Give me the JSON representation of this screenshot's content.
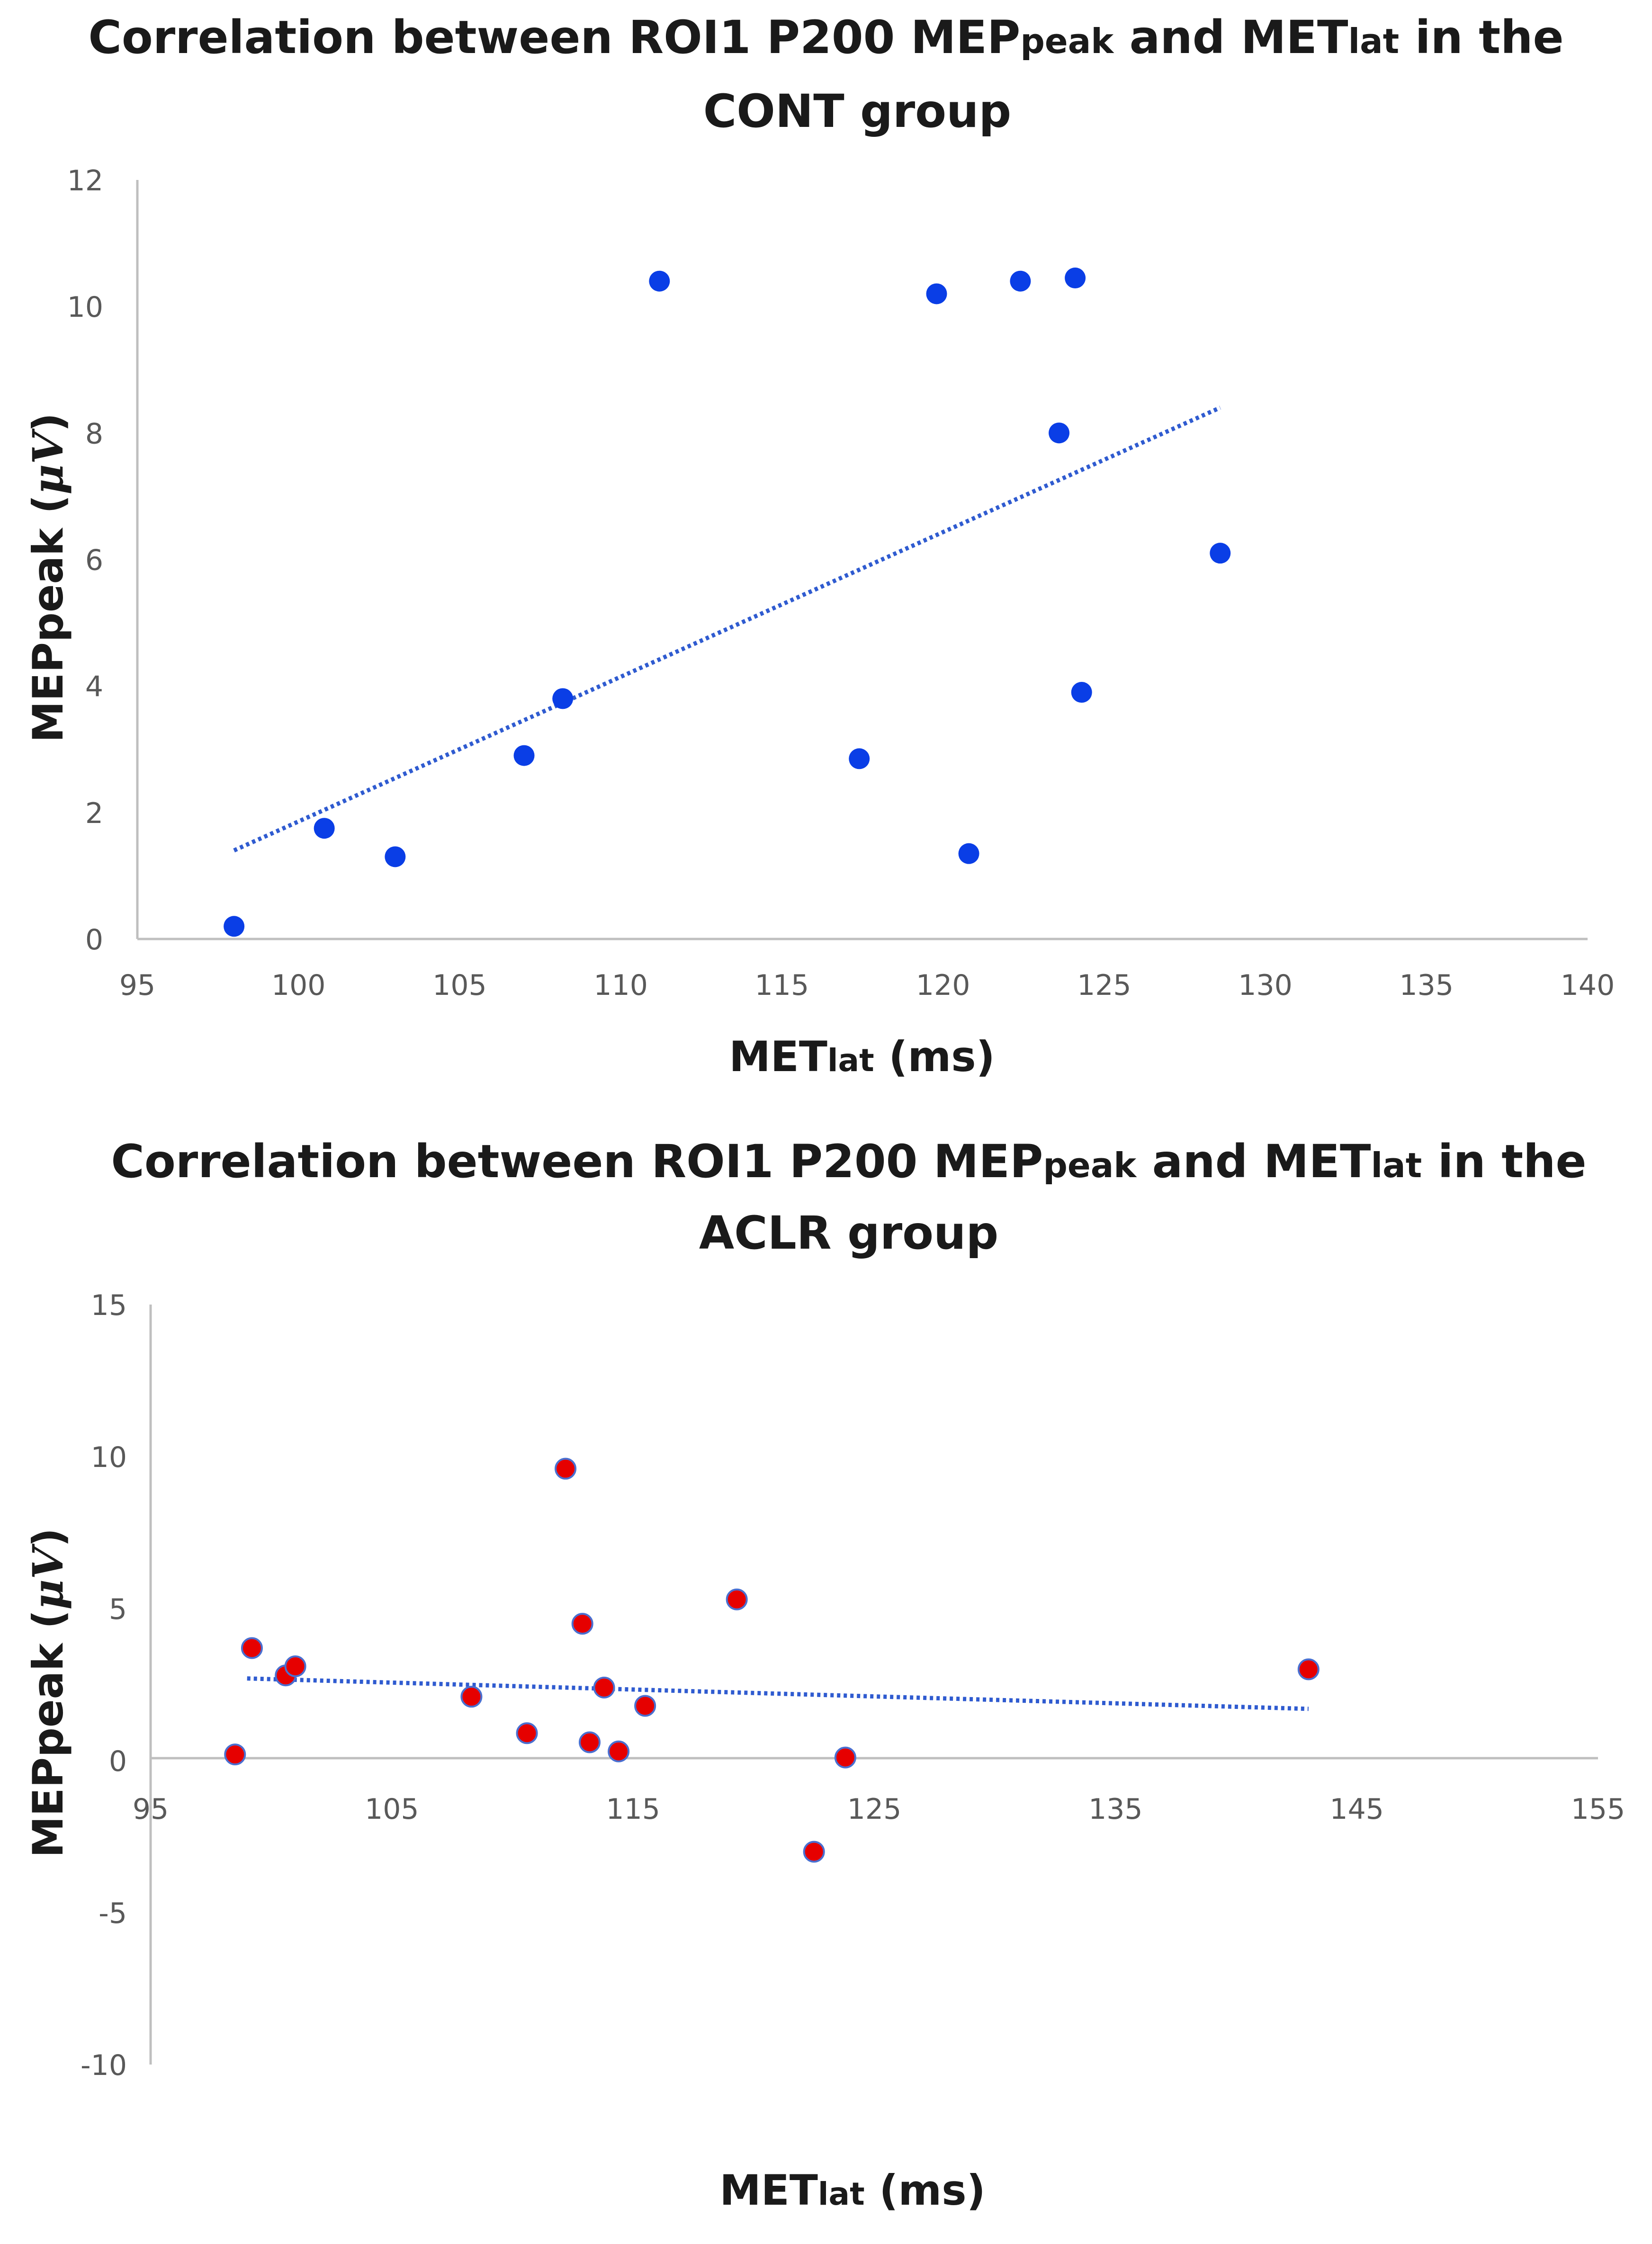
{
  "chart_data": [
    {
      "type": "scatter",
      "title": {
        "a": "Correlation between ROI1 P200 MEP",
        "a_sub": "peak",
        "b": " and MET",
        "b_sub": "lat",
        "c": " in the",
        "line2": "CONT group"
      },
      "xlabel": {
        "main": "MET",
        "sub": "lat",
        "rest": " (ms)"
      },
      "ylabel": {
        "main": "MEPpeak (",
        "mu": "μV",
        "close": ")"
      },
      "xlim": [
        95,
        140
      ],
      "ylim": [
        0,
        12
      ],
      "xticks": [
        "95",
        "100",
        "105",
        "110",
        "115",
        "120",
        "125",
        "130",
        "135",
        "140"
      ],
      "yticks": [
        "0",
        "2",
        "4",
        "6",
        "8",
        "10",
        "12"
      ],
      "grid": false,
      "marker_color": "#0a3ee6",
      "trendline": {
        "style": "dotted",
        "color": "#2f5bd0",
        "from": [
          98,
          1.4
        ],
        "to": [
          128.6,
          8.4
        ]
      },
      "points": [
        {
          "x": 98,
          "y": 0.2
        },
        {
          "x": 100.8,
          "y": 1.75
        },
        {
          "x": 103,
          "y": 1.3
        },
        {
          "x": 107,
          "y": 2.9
        },
        {
          "x": 108.2,
          "y": 3.8
        },
        {
          "x": 111.2,
          "y": 10.4
        },
        {
          "x": 117.4,
          "y": 2.85
        },
        {
          "x": 119.8,
          "y": 10.2
        },
        {
          "x": 120.8,
          "y": 1.35
        },
        {
          "x": 122.4,
          "y": 10.4
        },
        {
          "x": 123.6,
          "y": 8.0
        },
        {
          "x": 124.1,
          "y": 10.45
        },
        {
          "x": 124.3,
          "y": 3.9
        },
        {
          "x": 128.6,
          "y": 6.1
        }
      ]
    },
    {
      "type": "scatter",
      "title": {
        "a": "Correlation between ROI1 P200 MEP",
        "a_sub": "peak",
        "b": " and MET",
        "b_sub": "lat",
        "c": " in the",
        "line2": "ACLR group"
      },
      "xlabel": {
        "main": "MET",
        "sub": "lat",
        "rest": " (ms)"
      },
      "ylabel": {
        "main": "MEPpeak (",
        "mu": "μV",
        "close": ")"
      },
      "xlim": [
        95,
        155
      ],
      "ylim": [
        -10,
        15
      ],
      "xticks": [
        "95",
        "105",
        "115",
        "125",
        "135",
        "145",
        "155"
      ],
      "yticks": [
        "-10",
        "-5",
        "0",
        "5",
        "10",
        "15"
      ],
      "grid": false,
      "marker_color": "#e60000",
      "marker_edge": "#4a6fd0",
      "trendline": {
        "style": "dotted",
        "color": "#2f5bd0",
        "from": [
          99,
          2.7
        ],
        "to": [
          143,
          1.7
        ]
      },
      "points": [
        {
          "x": 98.5,
          "y": 0.2
        },
        {
          "x": 99.2,
          "y": 3.7
        },
        {
          "x": 100.6,
          "y": 2.8
        },
        {
          "x": 101,
          "y": 3.1
        },
        {
          "x": 108.3,
          "y": 2.1
        },
        {
          "x": 110.6,
          "y": 0.9
        },
        {
          "x": 112.2,
          "y": 9.6
        },
        {
          "x": 112.9,
          "y": 4.5
        },
        {
          "x": 113.2,
          "y": 0.6
        },
        {
          "x": 113.8,
          "y": 2.4
        },
        {
          "x": 114.4,
          "y": 0.3
        },
        {
          "x": 115.5,
          "y": 1.8
        },
        {
          "x": 119.3,
          "y": 5.3
        },
        {
          "x": 122.5,
          "y": -3.0
        },
        {
          "x": 123.8,
          "y": 0.1
        },
        {
          "x": 143,
          "y": 3.0
        }
      ]
    }
  ]
}
